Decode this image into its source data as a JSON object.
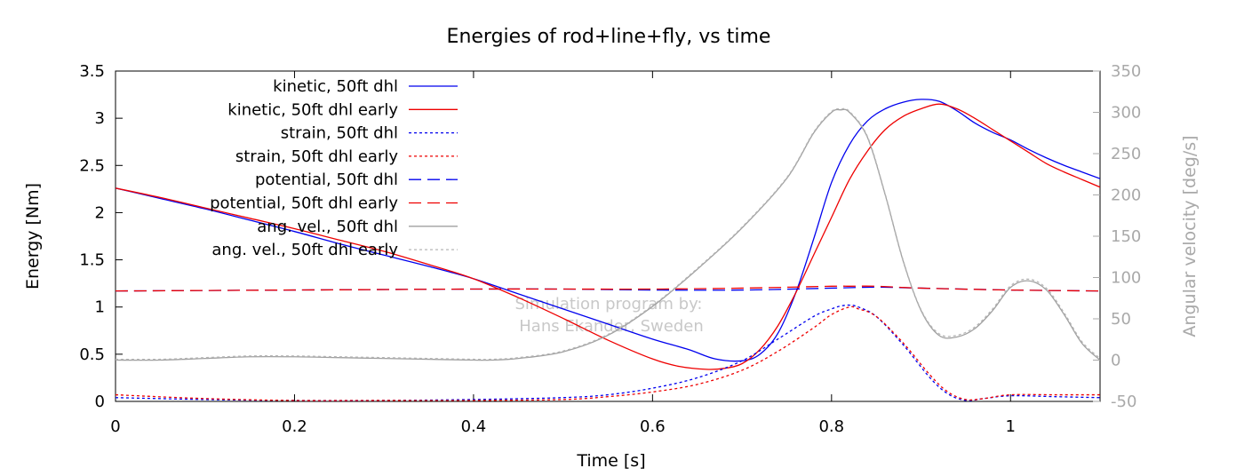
{
  "chart_data": {
    "type": "line",
    "title": "Energies of rod+line+fly, vs time",
    "xlabel": "Time [s]",
    "ylabel": "Energy [Nm]",
    "y2label": "Angular velocity [deg/s]",
    "xlim": [
      0,
      1.1
    ],
    "ylim": [
      0,
      3.5
    ],
    "y2lim": [
      -50,
      350
    ],
    "x_ticks": [
      0,
      0.2,
      0.4,
      0.6,
      0.8,
      1
    ],
    "x_tick_labels": [
      "0",
      "0.2",
      "0.4",
      "0.6",
      "0.8",
      "1"
    ],
    "y_ticks": [
      0,
      0.5,
      1,
      1.5,
      2,
      2.5,
      3,
      3.5
    ],
    "y_tick_labels": [
      "0",
      "0.5",
      "1",
      "1.5",
      "2",
      "2.5",
      "3",
      "3.5"
    ],
    "y2_ticks": [
      -50,
      0,
      50,
      100,
      150,
      200,
      250,
      300,
      350
    ],
    "y2_tick_labels": [
      "-50",
      "0",
      "50",
      "100",
      "150",
      "200",
      "250",
      "300",
      "350"
    ],
    "grid": false,
    "legend_position": "top-left",
    "watermark": [
      "Simulation program by:",
      "Hans Ekander, Sweden"
    ],
    "series": [
      {
        "name": "kinetic, 50ft dhl",
        "axis": "left",
        "color": "#0000ee",
        "style": "solid",
        "x": [
          0,
          0.05,
          0.1,
          0.15,
          0.2,
          0.25,
          0.3,
          0.35,
          0.4,
          0.45,
          0.5,
          0.55,
          0.6,
          0.64,
          0.67,
          0.7,
          0.72,
          0.74,
          0.76,
          0.78,
          0.8,
          0.82,
          0.84,
          0.86,
          0.88,
          0.9,
          0.92,
          0.94,
          0.96,
          0.98,
          1.0,
          1.02,
          1.04,
          1.06,
          1.08,
          1.1
        ],
        "y": [
          2.26,
          2.15,
          2.04,
          1.92,
          1.8,
          1.67,
          1.55,
          1.43,
          1.3,
          1.14,
          0.98,
          0.82,
          0.66,
          0.55,
          0.45,
          0.43,
          0.5,
          0.72,
          1.15,
          1.72,
          2.32,
          2.72,
          2.97,
          3.1,
          3.17,
          3.2,
          3.18,
          3.08,
          2.95,
          2.85,
          2.77,
          2.67,
          2.58,
          2.5,
          2.43,
          2.36
        ]
      },
      {
        "name": "kinetic, 50ft dhl early",
        "axis": "left",
        "color": "#ee0000",
        "style": "solid",
        "x": [
          0,
          0.05,
          0.1,
          0.15,
          0.2,
          0.25,
          0.3,
          0.35,
          0.4,
          0.45,
          0.5,
          0.55,
          0.6,
          0.63,
          0.66,
          0.68,
          0.7,
          0.72,
          0.74,
          0.76,
          0.78,
          0.8,
          0.82,
          0.84,
          0.86,
          0.88,
          0.9,
          0.92,
          0.94,
          0.96,
          0.98,
          1.0,
          1.02,
          1.04,
          1.06,
          1.08,
          1.1
        ],
        "y": [
          2.26,
          2.16,
          2.05,
          1.94,
          1.83,
          1.71,
          1.59,
          1.45,
          1.3,
          1.1,
          0.88,
          0.65,
          0.45,
          0.37,
          0.34,
          0.35,
          0.4,
          0.55,
          0.8,
          1.15,
          1.55,
          1.95,
          2.35,
          2.65,
          2.88,
          3.02,
          3.1,
          3.15,
          3.1,
          3.0,
          2.88,
          2.76,
          2.64,
          2.52,
          2.43,
          2.35,
          2.27
        ]
      },
      {
        "name": "strain, 50ft dhl",
        "axis": "left",
        "color": "#0000ee",
        "style": "dotted",
        "x": [
          0,
          0.1,
          0.2,
          0.3,
          0.4,
          0.5,
          0.55,
          0.6,
          0.65,
          0.7,
          0.74,
          0.78,
          0.8,
          0.81,
          0.82,
          0.83,
          0.85,
          0.88,
          0.91,
          0.93,
          0.95,
          0.97,
          1.0,
          1.05,
          1.1
        ],
        "y": [
          0.04,
          0.02,
          0.01,
          0.01,
          0.02,
          0.04,
          0.07,
          0.14,
          0.25,
          0.43,
          0.66,
          0.9,
          0.98,
          1.01,
          1.02,
          1.0,
          0.9,
          0.6,
          0.25,
          0.08,
          0.01,
          0.03,
          0.06,
          0.05,
          0.04
        ]
      },
      {
        "name": "strain, 50ft dhl early",
        "axis": "left",
        "color": "#ee0000",
        "style": "dotted",
        "x": [
          0,
          0.1,
          0.2,
          0.3,
          0.4,
          0.5,
          0.55,
          0.6,
          0.65,
          0.7,
          0.74,
          0.78,
          0.8,
          0.82,
          0.83,
          0.85,
          0.88,
          0.91,
          0.93,
          0.95,
          0.97,
          1.0,
          1.05,
          1.1
        ],
        "y": [
          0.07,
          0.03,
          0.01,
          0.01,
          0.01,
          0.02,
          0.05,
          0.1,
          0.18,
          0.33,
          0.53,
          0.78,
          0.92,
          1.0,
          0.98,
          0.9,
          0.62,
          0.28,
          0.1,
          0.02,
          0.03,
          0.07,
          0.07,
          0.07
        ]
      },
      {
        "name": "potential, 50ft dhl",
        "axis": "left",
        "color": "#0000ee",
        "style": "dashed",
        "x": [
          0,
          0.2,
          0.4,
          0.5,
          0.6,
          0.7,
          0.8,
          0.85,
          0.9,
          1.0,
          1.1
        ],
        "y": [
          1.17,
          1.18,
          1.19,
          1.19,
          1.18,
          1.18,
          1.2,
          1.21,
          1.2,
          1.18,
          1.17
        ]
      },
      {
        "name": "potential, 50ft dhl early",
        "axis": "left",
        "color": "#ee0000",
        "style": "dashed",
        "x": [
          0,
          0.2,
          0.4,
          0.5,
          0.6,
          0.7,
          0.8,
          0.82,
          0.85,
          0.9,
          1.0,
          1.1
        ],
        "y": [
          1.17,
          1.18,
          1.19,
          1.19,
          1.19,
          1.2,
          1.22,
          1.22,
          1.22,
          1.2,
          1.18,
          1.17
        ]
      },
      {
        "name": "ang. vel., 50ft dhl",
        "axis": "right",
        "color": "#a0a0a0",
        "style": "solid",
        "x": [
          0,
          0.05,
          0.1,
          0.15,
          0.2,
          0.25,
          0.3,
          0.35,
          0.4,
          0.42,
          0.45,
          0.5,
          0.55,
          0.6,
          0.65,
          0.7,
          0.75,
          0.78,
          0.8,
          0.81,
          0.82,
          0.84,
          0.86,
          0.88,
          0.9,
          0.92,
          0.94,
          0.96,
          0.98,
          1.0,
          1.02,
          1.04,
          1.06,
          1.08,
          1.1
        ],
        "y": [
          0,
          0,
          2,
          4,
          4,
          3,
          2,
          1,
          0,
          0,
          2,
          10,
          30,
          65,
          110,
          160,
          220,
          275,
          300,
          303,
          300,
          270,
          200,
          120,
          60,
          30,
          28,
          38,
          60,
          88,
          96,
          85,
          55,
          20,
          0
        ]
      },
      {
        "name": "ang. vel., 50ft dhl early",
        "axis": "right",
        "color": "#b5b5b5",
        "style": "dotted",
        "x": [
          0,
          0.05,
          0.1,
          0.15,
          0.2,
          0.25,
          0.3,
          0.35,
          0.4,
          0.42,
          0.45,
          0.5,
          0.55,
          0.6,
          0.65,
          0.7,
          0.75,
          0.78,
          0.8,
          0.81,
          0.82,
          0.84,
          0.86,
          0.88,
          0.9,
          0.92,
          0.94,
          0.96,
          0.98,
          1.0,
          1.02,
          1.04,
          1.06,
          1.08,
          1.1
        ],
        "y": [
          1,
          1,
          3,
          5,
          5,
          4,
          3,
          2,
          1,
          1,
          3,
          11,
          31,
          66,
          111,
          161,
          221,
          276,
          301,
          304,
          301,
          271,
          201,
          121,
          61,
          32,
          30,
          40,
          62,
          90,
          98,
          87,
          57,
          22,
          2
        ]
      }
    ]
  }
}
